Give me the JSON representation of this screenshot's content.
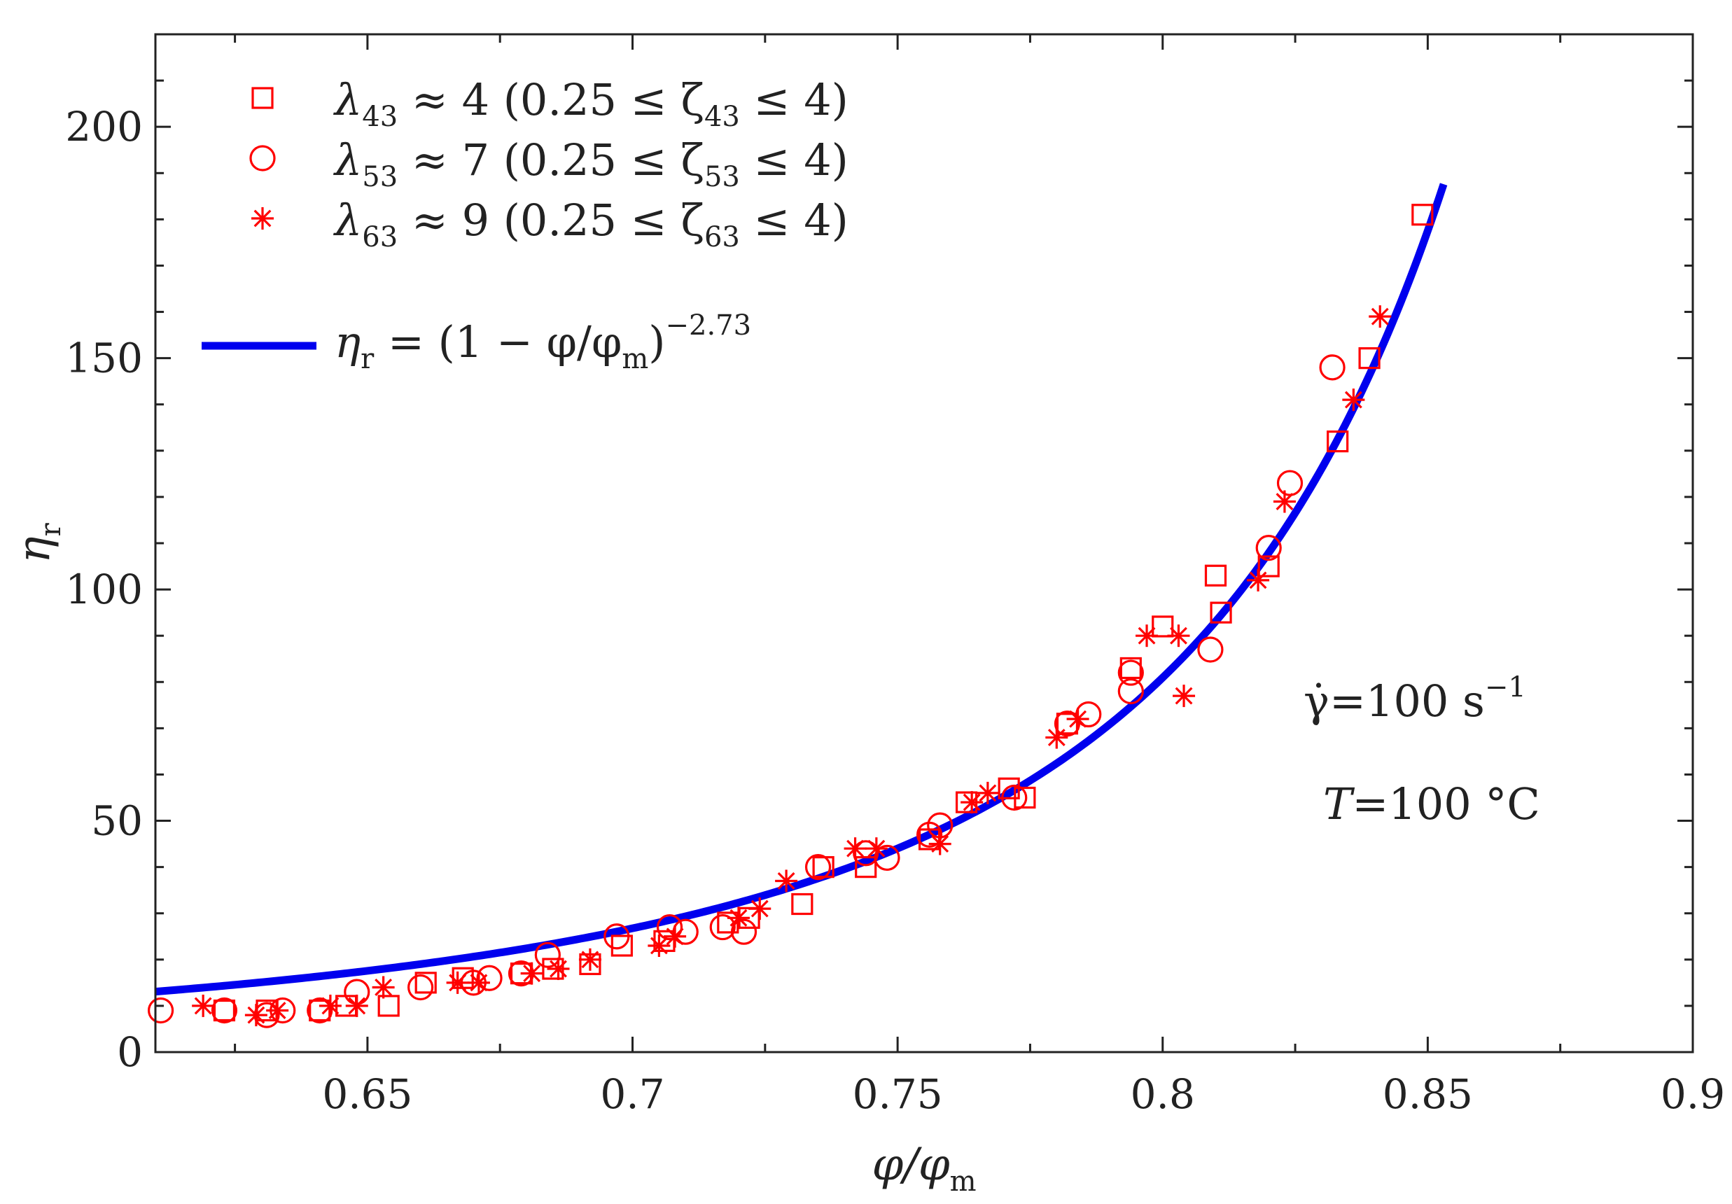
{
  "chart_data": {
    "type": "scatter",
    "title": "",
    "xlabel": "φ/φ",
    "xlabel_sub": "m",
    "ylabel": "η",
    "ylabel_sub": "r",
    "xlim": [
      0.61,
      0.9
    ],
    "ylim": [
      0,
      220
    ],
    "x_ticks": [
      0.65,
      0.7,
      0.75,
      0.8,
      0.85,
      0.9
    ],
    "x_tick_labels": [
      "0.65",
      "0.7",
      "0.75",
      "0.8",
      "0.85",
      "0.9"
    ],
    "y_ticks": [
      0,
      50,
      100,
      150,
      200
    ],
    "y_tick_labels": [
      "0",
      "50",
      "100",
      "150",
      "200"
    ],
    "grid": false,
    "colors": {
      "markers": "#ff0000",
      "fit": "#0000ee",
      "axes": "#222222"
    },
    "series": [
      {
        "name": "λ43 ≈ 4 (0.25 ≤ ζ43 ≤ 4)",
        "marker": "square",
        "legend_main": "λ",
        "legend_sub": "43",
        "legend_mid": " ≈ 4 (0.25 ≤ ζ",
        "legend_sub2": "43",
        "legend_end": " ≤ 4)",
        "x": [
          0.623,
          0.631,
          0.641,
          0.646,
          0.654,
          0.661,
          0.668,
          0.679,
          0.685,
          0.692,
          0.698,
          0.706,
          0.718,
          0.722,
          0.732,
          0.736,
          0.744,
          0.756,
          0.763,
          0.771,
          0.774,
          0.782,
          0.794,
          0.8,
          0.81,
          0.811,
          0.82,
          0.833,
          0.839,
          0.849
        ],
        "y": [
          9,
          9,
          9,
          10,
          10,
          15,
          16,
          17,
          18,
          19,
          23,
          24,
          28,
          29,
          32,
          40,
          40,
          46,
          54,
          57,
          55,
          71,
          83,
          92,
          103,
          95,
          105,
          132,
          150,
          181
        ]
      },
      {
        "name": "λ53 ≈ 7 (0.25 ≤ ζ53 ≤ 4)",
        "marker": "circle",
        "legend_main": "λ",
        "legend_sub": "53",
        "legend_mid": " ≈ 7 (0.25 ≤ ζ",
        "legend_sub2": "53",
        "legend_end": " ≤ 4)",
        "x": [
          0.611,
          0.623,
          0.631,
          0.634,
          0.641,
          0.648,
          0.66,
          0.67,
          0.673,
          0.679,
          0.684,
          0.697,
          0.707,
          0.71,
          0.717,
          0.721,
          0.735,
          0.744,
          0.748,
          0.756,
          0.758,
          0.772,
          0.782,
          0.786,
          0.794,
          0.794,
          0.809,
          0.82,
          0.824,
          0.832
        ],
        "y": [
          9,
          9,
          8,
          9,
          9,
          13,
          14,
          15,
          16,
          17,
          21,
          25,
          27,
          26,
          27,
          26,
          40,
          43,
          42,
          47,
          49,
          55,
          71,
          73,
          78,
          82,
          87,
          109,
          123,
          148
        ]
      },
      {
        "name": "λ63 ≈ 9 (0.25 ≤ ζ63 ≤ 4)",
        "marker": "asterisk",
        "legend_main": "λ",
        "legend_sub": "63",
        "legend_mid": " ≈ 9 (0.25 ≤ ζ",
        "legend_sub2": "63",
        "legend_end": " ≤ 4)",
        "x": [
          0.619,
          0.629,
          0.633,
          0.643,
          0.648,
          0.653,
          0.667,
          0.671,
          0.681,
          0.686,
          0.692,
          0.705,
          0.708,
          0.72,
          0.724,
          0.729,
          0.742,
          0.746,
          0.758,
          0.764,
          0.767,
          0.78,
          0.784,
          0.797,
          0.803,
          0.804,
          0.818,
          0.823,
          0.836,
          0.841
        ],
        "y": [
          10,
          8,
          9,
          10,
          10,
          14,
          15,
          15,
          17,
          18,
          20,
          23,
          25,
          29,
          31,
          37,
          44,
          44,
          45,
          54,
          56,
          68,
          72,
          90,
          90,
          77,
          102,
          119,
          141,
          159
        ]
      }
    ],
    "fit": {
      "name": "η_r = (1 − φ/φ_m)^−2.73",
      "legend_main": "η",
      "legend_sub": "r",
      "legend_mid": " = (1 − φ/φ",
      "legend_sub2": "m",
      "legend_end": ")",
      "legend_sup": "−2.73",
      "exponent": -2.73,
      "x_range": [
        0.61,
        0.853
      ]
    },
    "annotations": [
      {
        "main": "γ̇=100 s",
        "sup": "−1"
      },
      {
        "italic": "T",
        "rest": "=100 °C"
      }
    ]
  }
}
